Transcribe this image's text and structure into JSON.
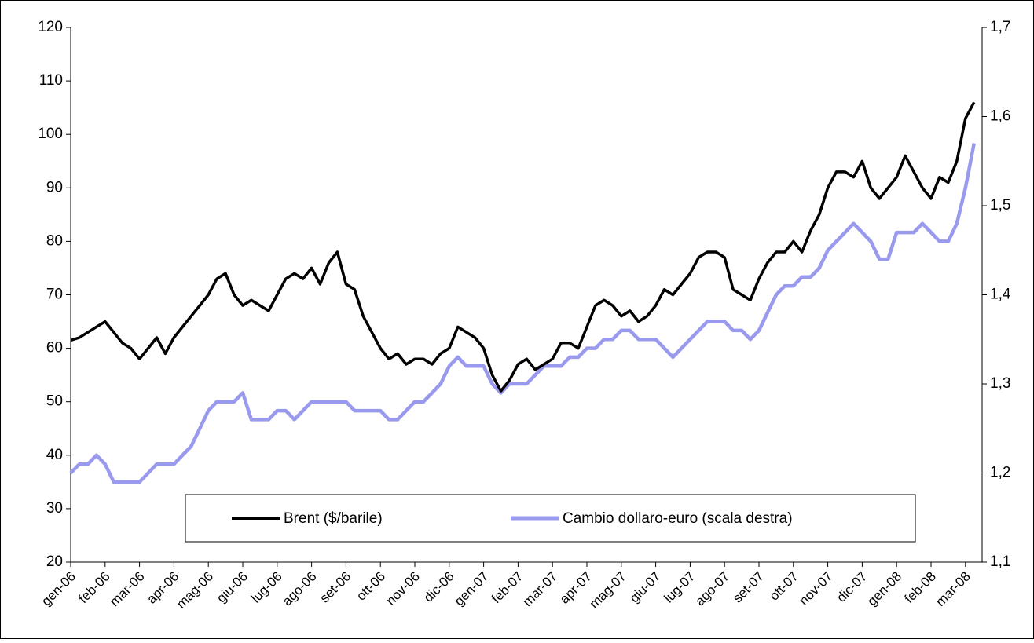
{
  "chart_data": {
    "type": "line",
    "categories": [
      "gen-06",
      null,
      null,
      null,
      "feb-06",
      null,
      null,
      null,
      "mar-06",
      null,
      null,
      null,
      "apr-06",
      null,
      null,
      null,
      "mag-06",
      null,
      null,
      null,
      "giu-06",
      null,
      null,
      null,
      "lug-06",
      null,
      null,
      null,
      "ago-06",
      null,
      null,
      null,
      "set-06",
      null,
      null,
      null,
      "ott-06",
      null,
      null,
      null,
      "nov-06",
      null,
      null,
      null,
      "dic-06",
      null,
      null,
      null,
      "gen-07",
      null,
      null,
      null,
      "feb-07",
      null,
      null,
      null,
      "mar-07",
      null,
      null,
      null,
      "apr-07",
      null,
      null,
      null,
      "mag-07",
      null,
      null,
      null,
      "giu-07",
      null,
      null,
      null,
      "lug-07",
      null,
      null,
      null,
      "ago-07",
      null,
      null,
      null,
      "set-07",
      null,
      null,
      null,
      "ott-07",
      null,
      null,
      null,
      "nov-07",
      null,
      null,
      null,
      "dic-07",
      null,
      null,
      null,
      "gen-08",
      null,
      null,
      null,
      "feb-08",
      null,
      null,
      null,
      "mar-08",
      null
    ],
    "series": [
      {
        "name": "Brent ($/barile)",
        "color": "#000000",
        "values": [
          61.5,
          62,
          63,
          64,
          65,
          63,
          61,
          60,
          58,
          60,
          62,
          59,
          62,
          64,
          66,
          68,
          70,
          73,
          74,
          70,
          68,
          69,
          68,
          67,
          70,
          73,
          74,
          73,
          75,
          72,
          76,
          78,
          72,
          71,
          66,
          63,
          60,
          58,
          59,
          57,
          58,
          58,
          57,
          59,
          60,
          64,
          63,
          62,
          60,
          55,
          52,
          54,
          57,
          58,
          56,
          57,
          58,
          61,
          61,
          60,
          64,
          68,
          69,
          68,
          66,
          67,
          65,
          66,
          68,
          71,
          70,
          72,
          74,
          77,
          78,
          78,
          77,
          71,
          70,
          69,
          73,
          76,
          78,
          78,
          80,
          78,
          82,
          85,
          90,
          93,
          93,
          92,
          95,
          90,
          88,
          90,
          92,
          96,
          93,
          90,
          88,
          92,
          91,
          95,
          103,
          106
        ]
      },
      {
        "name": "Cambio dollaro-euro (scala destra)",
        "color": "#9999ee",
        "axis": "y2",
        "values": [
          1.2,
          1.21,
          1.21,
          1.22,
          1.21,
          1.19,
          1.19,
          1.19,
          1.19,
          1.2,
          1.21,
          1.21,
          1.21,
          1.22,
          1.23,
          1.25,
          1.27,
          1.28,
          1.28,
          1.28,
          1.29,
          1.26,
          1.26,
          1.26,
          1.27,
          1.27,
          1.26,
          1.27,
          1.28,
          1.28,
          1.28,
          1.28,
          1.28,
          1.27,
          1.27,
          1.27,
          1.27,
          1.26,
          1.26,
          1.27,
          1.28,
          1.28,
          1.29,
          1.3,
          1.32,
          1.33,
          1.32,
          1.32,
          1.32,
          1.3,
          1.29,
          1.3,
          1.3,
          1.3,
          1.31,
          1.32,
          1.32,
          1.32,
          1.33,
          1.33,
          1.34,
          1.34,
          1.35,
          1.35,
          1.36,
          1.36,
          1.35,
          1.35,
          1.35,
          1.34,
          1.33,
          1.34,
          1.35,
          1.36,
          1.37,
          1.37,
          1.37,
          1.36,
          1.36,
          1.35,
          1.36,
          1.38,
          1.4,
          1.41,
          1.41,
          1.42,
          1.42,
          1.43,
          1.45,
          1.46,
          1.47,
          1.48,
          1.47,
          1.46,
          1.44,
          1.44,
          1.47,
          1.47,
          1.47,
          1.48,
          1.47,
          1.46,
          1.46,
          1.48,
          1.52,
          1.57
        ]
      }
    ],
    "ylim": [
      20,
      120
    ],
    "yticks": [
      20,
      30,
      40,
      50,
      60,
      70,
      80,
      90,
      100,
      110,
      120
    ],
    "y2lim": [
      1.1,
      1.7
    ],
    "y2ticks": [
      {
        "value": 1.1,
        "label": "1,1"
      },
      {
        "value": 1.2,
        "label": "1,2"
      },
      {
        "value": 1.3,
        "label": "1,3"
      },
      {
        "value": 1.4,
        "label": "1,4"
      },
      {
        "value": 1.5,
        "label": "1,5"
      },
      {
        "value": 1.6,
        "label": "1,6"
      },
      {
        "value": 1.7,
        "label": "1,7"
      }
    ],
    "legend": "bottom"
  }
}
